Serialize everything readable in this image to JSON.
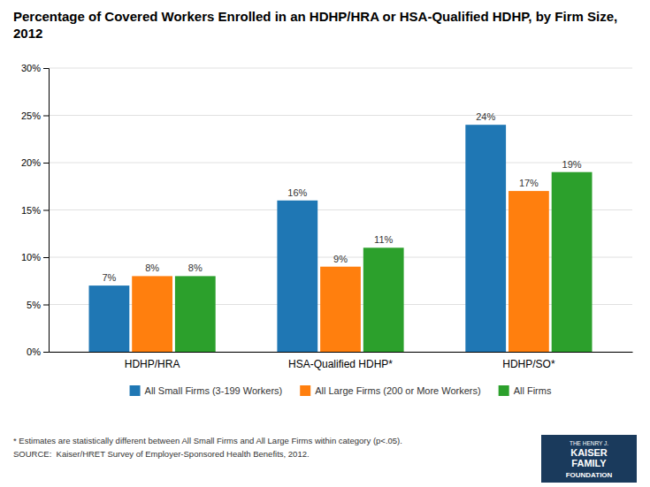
{
  "chart_data": {
    "type": "bar",
    "title": "Percentage of Covered Workers Enrolled in an HDHP/HRA or HSA-Qualified HDHP, by Firm Size, 2012",
    "categories": [
      "HDHP/HRA",
      "HSA-Qualified HDHP*",
      "HDHP/SO*"
    ],
    "series": [
      {
        "name": "All Small Firms (3-199 Workers)",
        "values": [
          7,
          16,
          24
        ],
        "value_labels": [
          "7%",
          "16%",
          "24%"
        ]
      },
      {
        "name": "All Large Firms (200 or More Workers)",
        "values": [
          8,
          9,
          17
        ],
        "value_labels": [
          "8%",
          "9%",
          "17%"
        ]
      },
      {
        "name": "All Firms",
        "values": [
          8,
          11,
          19
        ],
        "value_labels": [
          "8%",
          "11%",
          "19%"
        ]
      }
    ],
    "ylim": [
      0,
      30
    ],
    "yticks": [
      {
        "value": 0,
        "label": "0%"
      },
      {
        "value": 5,
        "label": "5%"
      },
      {
        "value": 10,
        "label": "10%"
      },
      {
        "value": 15,
        "label": "15%"
      },
      {
        "value": 20,
        "label": "20%"
      },
      {
        "value": 25,
        "label": "25%"
      },
      {
        "value": 30,
        "label": "30%"
      }
    ],
    "grid": true,
    "legend": "bottom",
    "data_labels": true,
    "annotations": [
      "* Estimates are statistically different between All Small Firms and All Large Firms within category (p<.05).",
      "SOURCE:  Kaiser/HRET Survey of Employer-Sponsored Health Benefits, 2012.",
      "THE HENRY J.",
      "KAISER",
      "FAMILY",
      "FOUNDATION"
    ]
  }
}
